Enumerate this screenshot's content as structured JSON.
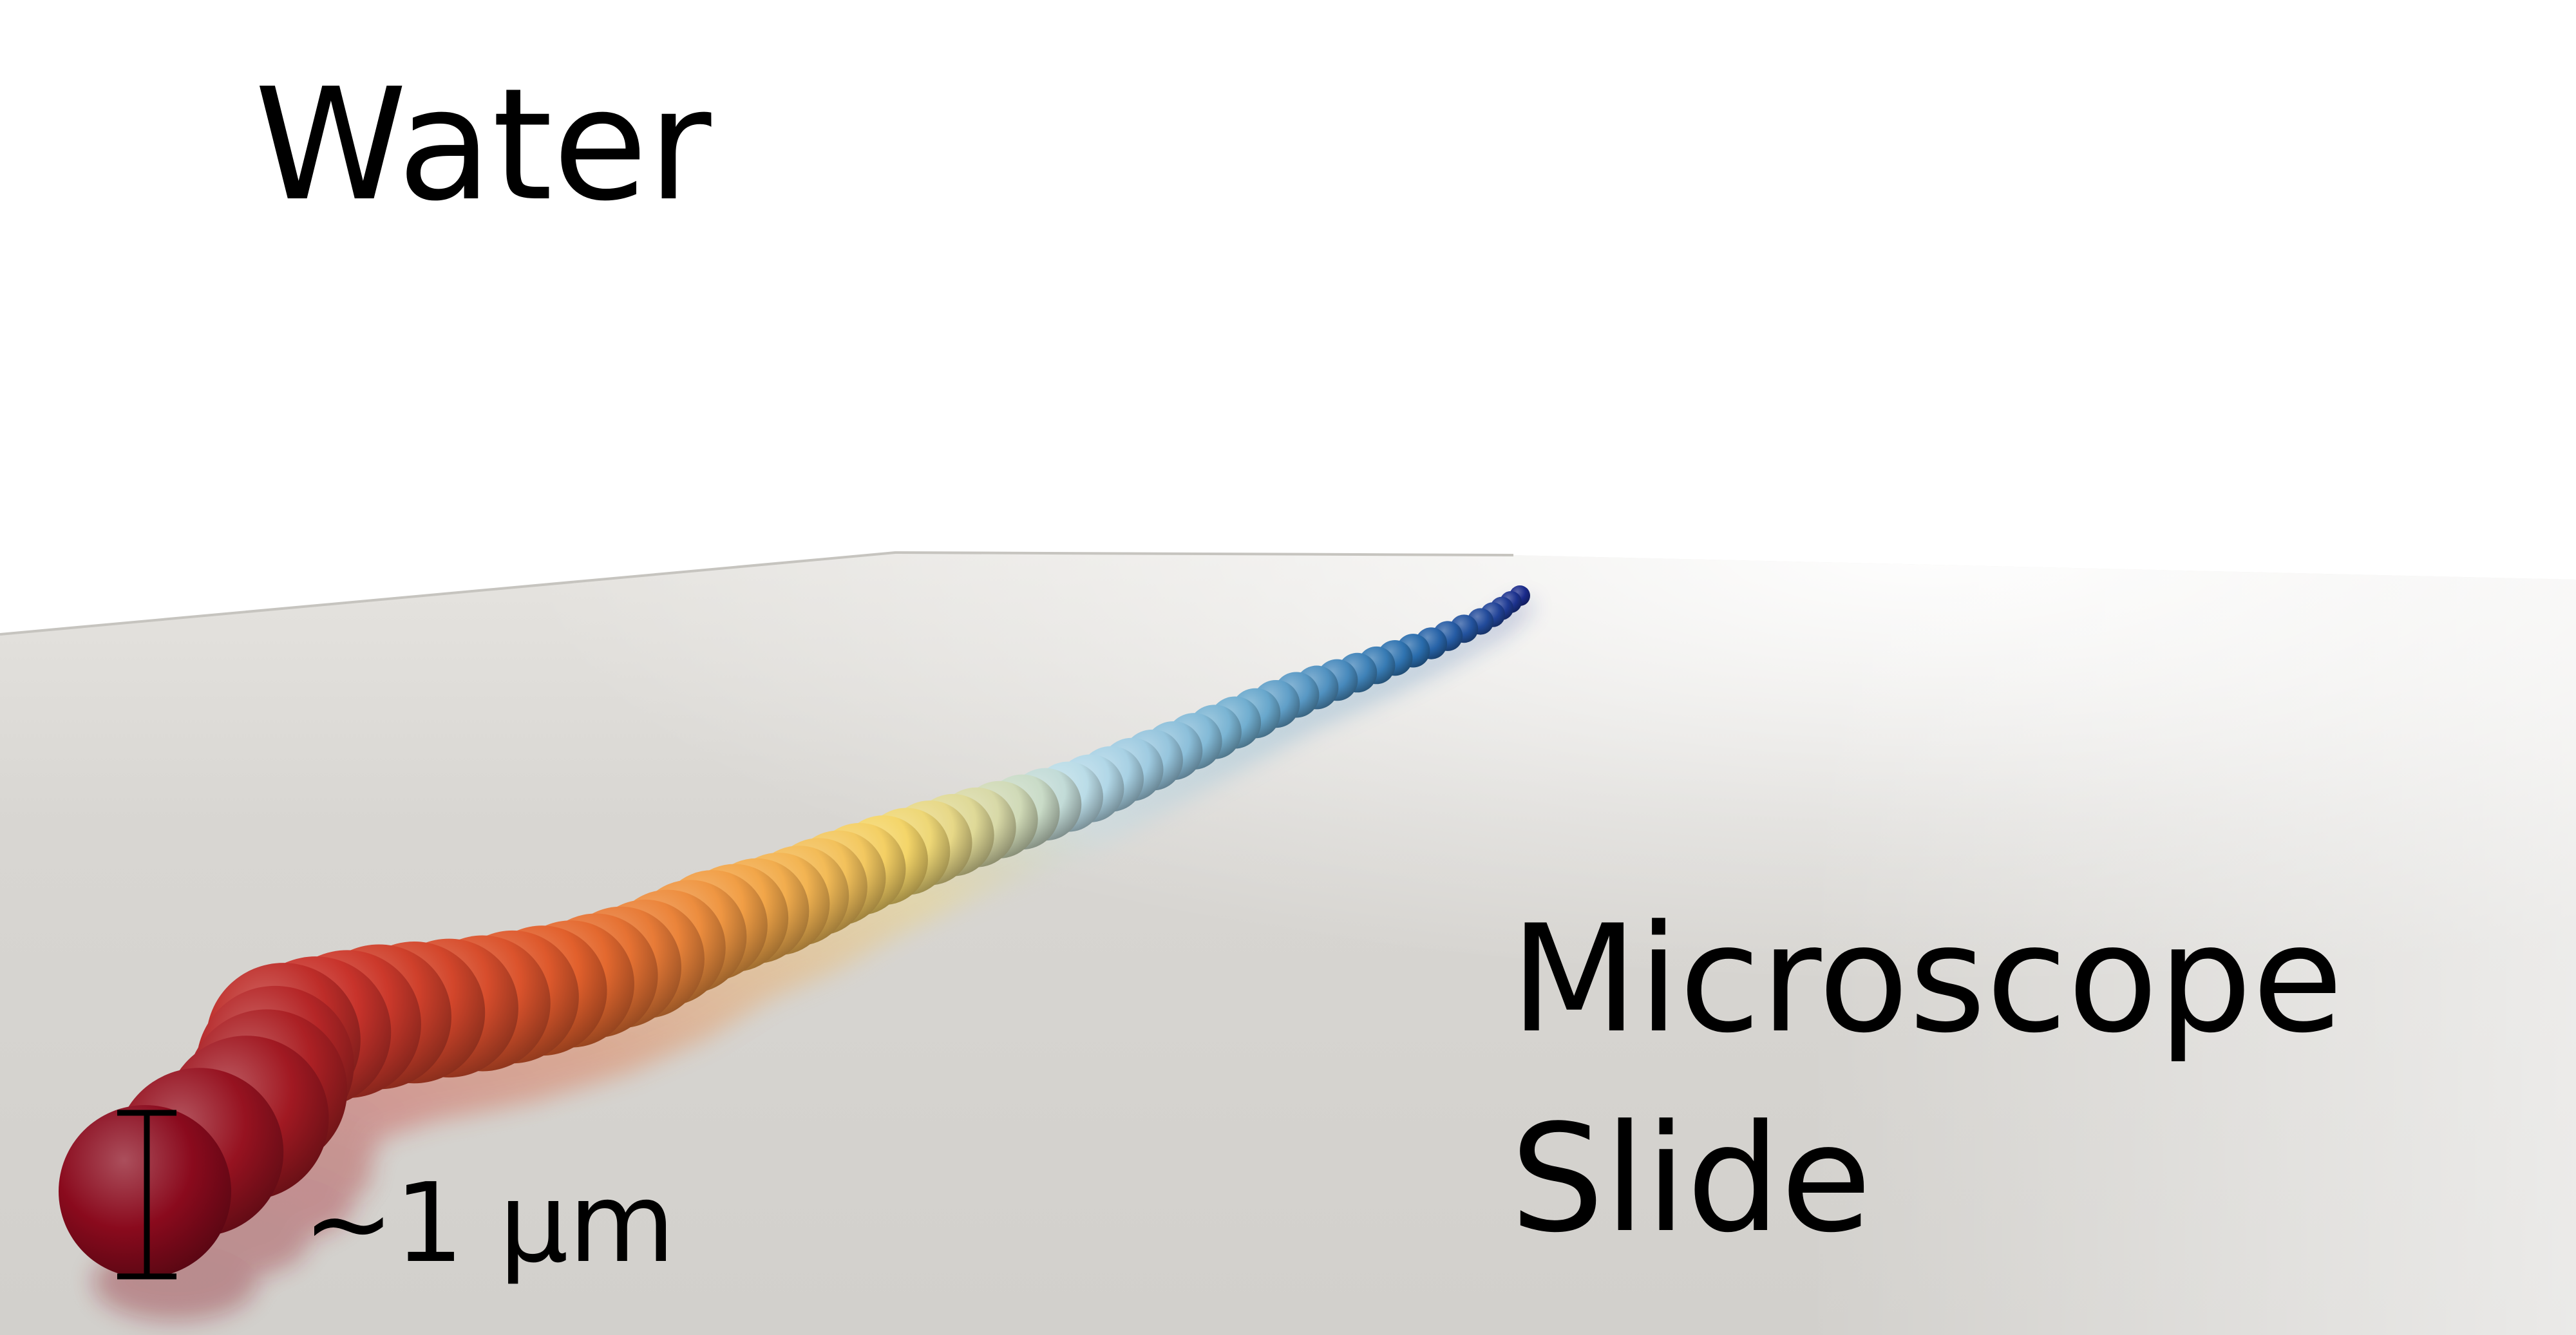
{
  "labels": {
    "water": "Water",
    "slide_line1": "Microscope",
    "slide_line2": "Slide",
    "scale": "~1 µm"
  },
  "colors": {
    "water_background": "#ffffff",
    "slide_surface": "#d4d2ce",
    "slide_edge": "#c3c1bc",
    "scale_bar": "#000000",
    "chain_gradient": [
      "#8a0a1d",
      "#c8332b",
      "#e2602c",
      "#f2a347",
      "#f4d76a",
      "#b9dcea",
      "#6eaccf",
      "#2a6fae",
      "#1a2a8a"
    ]
  }
}
